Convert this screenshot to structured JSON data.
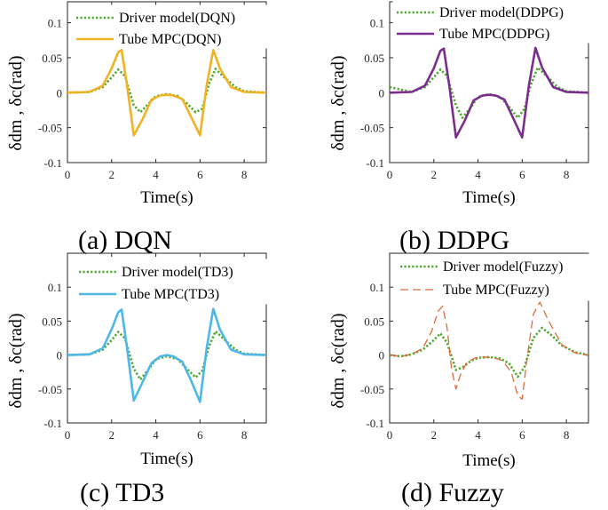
{
  "chart_data": [
    {
      "type": "line",
      "caption": "(a) DQN",
      "xlabel": "Time(s)",
      "ylabel": "δdm , δc(rad)",
      "xlim": [
        0,
        9
      ],
      "ylim": [
        -0.1,
        0.13
      ],
      "xticks": [
        0,
        2,
        4,
        6,
        8
      ],
      "yticks": [
        -0.1,
        -0.05,
        0,
        0.05,
        0.1
      ],
      "xtick_labels": [
        "0",
        "2",
        "4",
        "6",
        "8"
      ],
      "ytick_labels": [
        "-0.1",
        "-0.05",
        "0",
        "0.05",
        "0.1"
      ],
      "legend_position": "top-right",
      "grid": false,
      "series": [
        {
          "name": "Driver model(DQN)",
          "color": "#4ea72e",
          "style": "dotted",
          "x": [
            0,
            1,
            1.6,
            2,
            2.3,
            2.6,
            3,
            3.3,
            3.7,
            4,
            4.5,
            5,
            5.4,
            5.8,
            6.1,
            6.4,
            6.7,
            7.1,
            7.6,
            8,
            9
          ],
          "y": [
            0,
            0.001,
            0.008,
            0.022,
            0.033,
            0.024,
            -0.018,
            -0.028,
            -0.015,
            -0.005,
            -0.002,
            -0.005,
            -0.015,
            -0.028,
            -0.023,
            0.012,
            0.034,
            0.022,
            0.008,
            0.002,
            0
          ]
        },
        {
          "name": "Tube MPC(DQN)",
          "color": "#f0b323",
          "style": "solid",
          "x": [
            0,
            1,
            1.6,
            2,
            2.3,
            2.45,
            2.7,
            3.0,
            3.4,
            3.8,
            4.2,
            4.5,
            4.8,
            5.2,
            5.6,
            6.0,
            6.3,
            6.6,
            6.9,
            7.4,
            8,
            9
          ],
          "y": [
            0,
            0.001,
            0.01,
            0.035,
            0.058,
            0.061,
            0.01,
            -0.061,
            -0.038,
            -0.01,
            -0.004,
            -0.003,
            -0.004,
            -0.009,
            -0.035,
            -0.061,
            0.01,
            0.061,
            0.035,
            0.008,
            0.001,
            0
          ]
        }
      ]
    },
    {
      "type": "line",
      "caption": "(b) DDPG",
      "xlabel": "Time(s)",
      "ylabel": "δdm , δc(rad)",
      "xlim": [
        0,
        9
      ],
      "ylim": [
        -0.1,
        0.13
      ],
      "xticks": [
        0,
        2,
        4,
        6,
        8
      ],
      "yticks": [
        -0.1,
        -0.05,
        0,
        0.05,
        0.1
      ],
      "xtick_labels": [
        "0",
        "2",
        "4",
        "6",
        "8"
      ],
      "ytick_labels": [
        "-0.1",
        "-0.05",
        "0",
        "0.05",
        "0.1"
      ],
      "legend_position": "top-right",
      "grid": false,
      "series": [
        {
          "name": "Driver model(DDPG)",
          "color": "#4ea72e",
          "style": "dotted",
          "x": [
            0,
            1,
            1.6,
            2,
            2.3,
            2.6,
            3,
            3.3,
            3.7,
            4,
            4.5,
            5,
            5.4,
            5.8,
            6.1,
            6.4,
            6.7,
            7.1,
            7.6,
            8,
            9
          ],
          "y": [
            0.008,
            0.001,
            0.008,
            0.022,
            0.033,
            0.024,
            -0.018,
            -0.036,
            -0.02,
            -0.006,
            -0.002,
            -0.006,
            -0.02,
            -0.036,
            -0.023,
            0.012,
            0.036,
            0.024,
            0.008,
            0.002,
            0
          ]
        },
        {
          "name": "Tube MPC(DDPG)",
          "color": "#7b2d8e",
          "style": "solid",
          "x": [
            0,
            1,
            1.6,
            2,
            2.3,
            2.45,
            2.7,
            3.0,
            3.4,
            3.8,
            4.2,
            4.5,
            4.8,
            5.2,
            5.6,
            6.0,
            6.3,
            6.6,
            6.9,
            7.4,
            8,
            9
          ],
          "y": [
            0,
            0.001,
            0.01,
            0.035,
            0.06,
            0.063,
            0.01,
            -0.064,
            -0.04,
            -0.011,
            -0.004,
            -0.003,
            -0.004,
            -0.01,
            -0.037,
            -0.064,
            0.01,
            0.064,
            0.036,
            0.008,
            0.001,
            0
          ]
        }
      ]
    },
    {
      "type": "line",
      "caption": "(c) TD3",
      "xlabel": "Time(s)",
      "ylabel": "δdm , δc(rad)",
      "xlim": [
        0,
        9
      ],
      "ylim": [
        -0.1,
        0.15
      ],
      "xticks": [
        0,
        2,
        4,
        6,
        8
      ],
      "yticks": [
        -0.1,
        -0.05,
        0,
        0.05,
        0.1
      ],
      "xtick_labels": [
        "0",
        "2",
        "4",
        "6",
        "8"
      ],
      "ytick_labels": [
        "-0.1",
        "-0.05",
        "0",
        "0.05",
        "0.1"
      ],
      "legend_position": "top-right",
      "grid": false,
      "series": [
        {
          "name": "Driver model(TD3)",
          "color": "#4ea72e",
          "style": "dotted",
          "x": [
            0,
            1,
            1.6,
            2,
            2.3,
            2.6,
            3,
            3.3,
            3.7,
            4,
            4.5,
            5,
            5.4,
            5.8,
            6.1,
            6.4,
            6.7,
            7.1,
            7.6,
            8,
            9
          ],
          "y": [
            0,
            0.001,
            0.008,
            0.022,
            0.034,
            0.025,
            -0.02,
            -0.036,
            -0.02,
            -0.006,
            -0.002,
            -0.006,
            -0.02,
            -0.033,
            -0.023,
            0.012,
            0.035,
            0.023,
            0.008,
            0.002,
            0
          ]
        },
        {
          "name": "Tube MPC(TD3)",
          "color": "#4db8e8",
          "style": "solid",
          "x": [
            0,
            1,
            1.6,
            2,
            2.3,
            2.45,
            2.7,
            3.0,
            3.4,
            3.8,
            4.2,
            4.5,
            4.8,
            5.2,
            5.6,
            6.0,
            6.3,
            6.6,
            6.9,
            7.4,
            8,
            9
          ],
          "y": [
            0,
            0.001,
            0.01,
            0.038,
            0.063,
            0.067,
            0.01,
            -0.067,
            -0.04,
            -0.012,
            -0.002,
            0,
            -0.002,
            -0.01,
            -0.038,
            -0.069,
            0.01,
            0.068,
            0.038,
            0.008,
            0.001,
            0
          ]
        }
      ]
    },
    {
      "type": "line",
      "caption": "(d) Fuzzy",
      "xlabel": "Time(s)",
      "ylabel": "δdm , δc(rad)",
      "xlim": [
        0,
        9
      ],
      "ylim": [
        -0.1,
        0.15
      ],
      "xticks": [
        0,
        2,
        4,
        6,
        8
      ],
      "yticks": [
        -0.1,
        -0.05,
        0,
        0.05,
        0.1
      ],
      "xtick_labels": [
        "0",
        "2",
        "4",
        "6",
        "8"
      ],
      "ytick_labels": [
        "-0.1",
        "-0.05",
        "0",
        "0.05",
        "0.1"
      ],
      "legend_position": "top-right",
      "grid": false,
      "series": [
        {
          "name": "Driver model(Fuzzy)",
          "color": "#4ea72e",
          "style": "dotted",
          "x": [
            0,
            0.5,
            1,
            1.5,
            2,
            2.3,
            2.6,
            3,
            3.3,
            3.7,
            4,
            4.5,
            5,
            5.4,
            5.8,
            6.1,
            6.5,
            6.9,
            7.3,
            7.8,
            8.4,
            9
          ],
          "y": [
            0,
            -0.002,
            0.001,
            0.008,
            0.022,
            0.032,
            0.018,
            -0.022,
            -0.018,
            -0.008,
            -0.004,
            -0.003,
            -0.005,
            -0.012,
            -0.032,
            -0.018,
            0.025,
            0.04,
            0.03,
            0.014,
            0.004,
            0
          ]
        },
        {
          "name": "Tube MPC(Fuzzy)",
          "color": "#e06a3a",
          "style": "dashed",
          "x": [
            0,
            0.5,
            1,
            1.5,
            1.9,
            2.2,
            2.4,
            2.6,
            2.8,
            3.0,
            3.2,
            3.5,
            3.9,
            4.3,
            4.7,
            5.1,
            5.5,
            5.8,
            6.0,
            6.2,
            6.5,
            6.8,
            7.2,
            7.8,
            8.4,
            9
          ],
          "y": [
            0,
            -0.002,
            0.001,
            0.01,
            0.035,
            0.065,
            0.072,
            0.04,
            -0.02,
            -0.05,
            -0.03,
            -0.01,
            -0.004,
            -0.003,
            -0.004,
            -0.008,
            -0.025,
            -0.06,
            -0.065,
            -0.01,
            0.06,
            0.078,
            0.05,
            0.015,
            0.003,
            0
          ]
        }
      ]
    }
  ]
}
